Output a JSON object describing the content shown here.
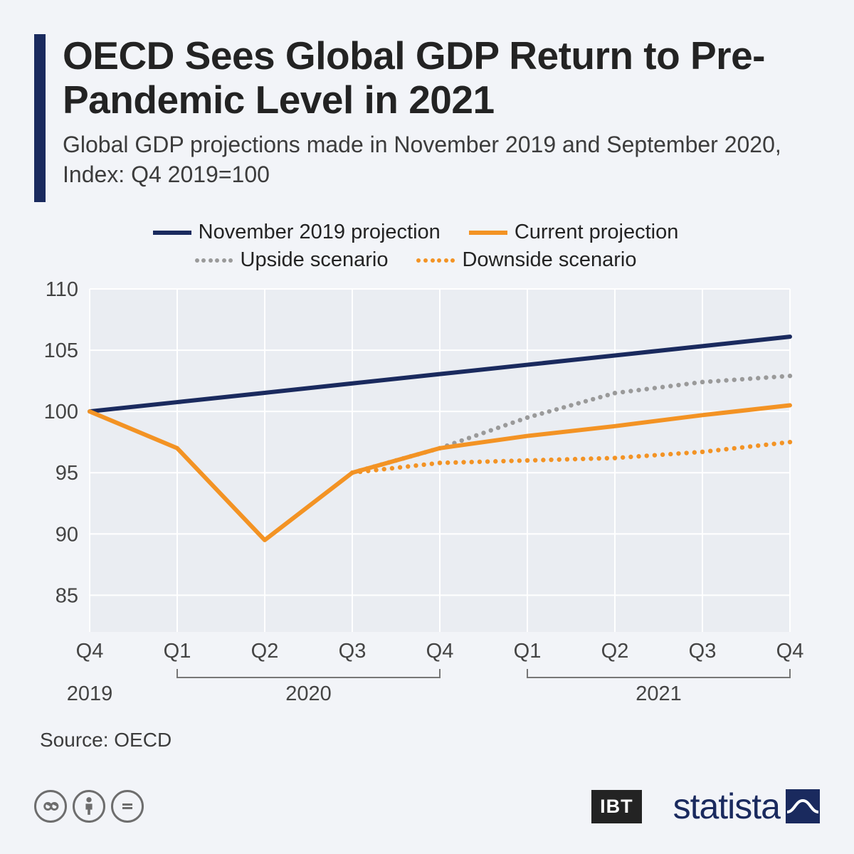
{
  "header": {
    "title": "OECD Sees Global GDP Return to Pre-Pandemic Level in 2021",
    "subtitle": "Global GDP projections made in November 2019 and September 2020, Index: Q4 2019=100"
  },
  "legend": {
    "nov2019": "November 2019 projection",
    "current": "Current projection",
    "upside": "Upside scenario",
    "downside": "Downside scenario"
  },
  "chart": {
    "type": "line",
    "background_color": "#f2f4f8",
    "plot_background": "#eaedf2",
    "grid_color": "#ffffff",
    "axis_text_color": "#444444",
    "x_categories": [
      "Q4",
      "Q1",
      "Q2",
      "Q3",
      "Q4",
      "Q1",
      "Q2",
      "Q3",
      "Q4"
    ],
    "x_year_groups": [
      {
        "label": "2019",
        "span": [
          0,
          0
        ]
      },
      {
        "label": "2020",
        "span": [
          1,
          4
        ]
      },
      {
        "label": "2021",
        "span": [
          5,
          8
        ]
      }
    ],
    "ylim": [
      82,
      110
    ],
    "yticks": [
      85,
      90,
      95,
      100,
      105,
      110
    ],
    "line_width": 6,
    "dot_radius": 3.2,
    "series": {
      "nov2019": {
        "color": "#1a2a5e",
        "style": "solid",
        "values": [
          100,
          100.76,
          101.52,
          102.29,
          103.05,
          103.81,
          104.57,
          105.33,
          106.1
        ]
      },
      "current": {
        "color": "#f39324",
        "style": "solid",
        "values": [
          100,
          97.0,
          89.5,
          95.0,
          97.0,
          98.0,
          98.8,
          99.7,
          100.5
        ]
      },
      "upside": {
        "color": "#9a9a9a",
        "style": "dotted",
        "values": [
          null,
          null,
          null,
          95.0,
          97.0,
          99.5,
          101.5,
          102.4,
          102.9
        ]
      },
      "downside": {
        "color": "#f39324",
        "style": "dotted",
        "values": [
          null,
          null,
          null,
          95.0,
          95.8,
          96.0,
          96.2,
          96.7,
          97.5
        ]
      }
    }
  },
  "source": "Source: OECD",
  "footer": {
    "ibt": "IBT",
    "statista": "statista",
    "cc": [
      "cc",
      "by",
      "nd"
    ]
  },
  "colors": {
    "header_bar": "#1a2a5e",
    "text": "#232323"
  }
}
